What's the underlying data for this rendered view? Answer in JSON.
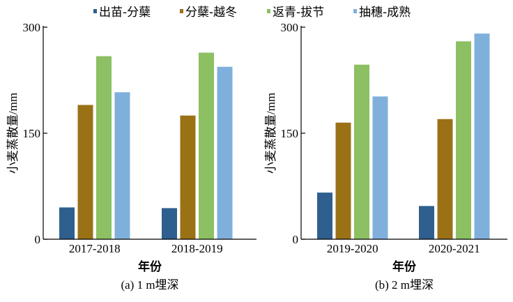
{
  "legend": [
    {
      "label": "出苗-分蘖",
      "color": "#2e5f8e"
    },
    {
      "label": "分蘖-越冬",
      "color": "#9b7116"
    },
    {
      "label": "返青-拔节",
      "color": "#8cc063"
    },
    {
      "label": "抽穗-成熟",
      "color": "#7fb0dc"
    }
  ],
  "chart_data": [
    {
      "type": "bar",
      "caption": "(a) 1 m埋深",
      "xlabel": "年份",
      "ylabel": "小麦蒸散量/mm",
      "ylim": [
        0,
        300
      ],
      "yticks": [
        "0",
        "150",
        "300"
      ],
      "categories": [
        "2017-2018",
        "2018-2019"
      ],
      "series": [
        {
          "name": "出苗-分蘖",
          "values": [
            45,
            44
          ]
        },
        {
          "name": "分蘖-越冬",
          "values": [
            190,
            175
          ]
        },
        {
          "name": "返青-拔节",
          "values": [
            259,
            264
          ]
        },
        {
          "name": "抽穗-成熟",
          "values": [
            208,
            244
          ]
        }
      ]
    },
    {
      "type": "bar",
      "caption": "(b) 2 m埋深",
      "xlabel": "年份",
      "ylabel": "小麦蒸散量/mm",
      "ylim": [
        0,
        300
      ],
      "yticks": [
        "0",
        "150",
        "300"
      ],
      "categories": [
        "2019-2020",
        "2020-2021"
      ],
      "series": [
        {
          "name": "出苗-分蘖",
          "values": [
            66,
            47
          ]
        },
        {
          "name": "分蘖-越冬",
          "values": [
            165,
            170
          ]
        },
        {
          "name": "返青-拔节",
          "values": [
            247,
            280
          ]
        },
        {
          "name": "抽穗-成熟",
          "values": [
            202,
            291
          ]
        }
      ]
    }
  ]
}
